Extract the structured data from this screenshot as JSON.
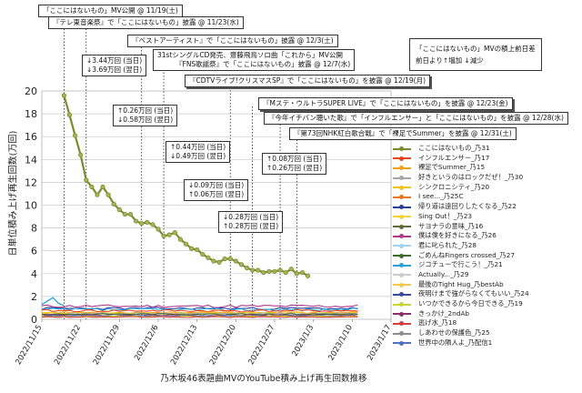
{
  "chart_data": {
    "type": "line",
    "xlabel": "乃木坂46表題曲MVのYouTube積み上げ再生回数推移",
    "ylabel": "日単位積み上げ再生回数(万回)",
    "ylim": [
      0,
      20
    ],
    "y_ticks": [
      "0",
      "2",
      "4",
      "6",
      "8",
      "10",
      "12",
      "14",
      "16",
      "18",
      "20"
    ],
    "x_ticks": [
      "2022/11/15",
      "2022/11/22",
      "2022/11/29",
      "2022/12/6",
      "2022/12/13",
      "2022/12/20",
      "2022/12/27",
      "2023/1/3",
      "2023/1/10",
      "2023/1/17"
    ],
    "grid": "horizontal",
    "legend_position": "right",
    "main_series": {
      "name": "ここにはないもの_乃31",
      "color": "#7a8c2e",
      "x": [
        "2022/11/19",
        "2022/11/20",
        "2022/11/21",
        "2022/11/22",
        "2022/11/23",
        "2022/11/24",
        "2022/11/25",
        "2022/11/26",
        "2022/11/27",
        "2022/11/28",
        "2022/11/29",
        "2022/11/30",
        "2022/12/1",
        "2022/12/2",
        "2022/12/3",
        "2022/12/4",
        "2022/12/5",
        "2022/12/6",
        "2022/12/7",
        "2022/12/8",
        "2022/12/9",
        "2022/12/10",
        "2022/12/11",
        "2022/12/12",
        "2022/12/13",
        "2022/12/14",
        "2022/12/15",
        "2022/12/16",
        "2022/12/17",
        "2022/12/18",
        "2022/12/19",
        "2022/12/20",
        "2022/12/21",
        "2022/12/22",
        "2022/12/23",
        "2022/12/24",
        "2022/12/25",
        "2022/12/26",
        "2022/12/27",
        "2022/12/28",
        "2022/12/29",
        "2022/12/30",
        "2022/12/31",
        "2023/1/1",
        "2023/1/2"
      ],
      "values": [
        19.6,
        17.9,
        16.1,
        14.4,
        12.2,
        11.6,
        10.9,
        11.6,
        10.9,
        10.1,
        9.6,
        9.2,
        9.2,
        8.6,
        8.4,
        8.5,
        8.3,
        7.9,
        7.3,
        7.4,
        7.6,
        7.0,
        6.6,
        6.2,
        6.1,
        5.7,
        5.4,
        5.1,
        5.0,
        5.3,
        5.3,
        5.1,
        4.8,
        4.5,
        4.3,
        4.3,
        4.1,
        4.2,
        4.2,
        4.3,
        4.1,
        4.4,
        4.0,
        4.1,
        3.8
      ]
    },
    "series": [
      {
        "name": "ここにはないもの_乃31",
        "color": "#7a8c2e"
      },
      {
        "name": "インフルエンサー_乃17",
        "color": "#e8451e"
      },
      {
        "name": "裸足でSummer_乃15",
        "color": "#f3a11a"
      },
      {
        "name": "好きというのはロックだぜ！_乃30",
        "color": "#a6a6a6"
      },
      {
        "name": "シンクロニシティ_乃20",
        "color": "#f0c419"
      },
      {
        "name": "I see..._乃25C",
        "color": "#e5762a"
      },
      {
        "name": "帰り道は遠回りしたくなる_乃22",
        "color": "#2a3f9c"
      },
      {
        "name": "Sing Out！_乃23",
        "color": "#f5d33a"
      },
      {
        "name": "サヨナラの意味_乃16",
        "color": "#5e6b3a"
      },
      {
        "name": "僕は僕を好きになる_乃26",
        "color": "#b03a8a"
      },
      {
        "name": "君に叱られた_乃28",
        "color": "#9ed4ee"
      },
      {
        "name": "ごめんねFingers crossed_乃27",
        "color": "#3f6b2a"
      },
      {
        "name": "ジコチューで行こう！_乃21",
        "color": "#26a3d9"
      },
      {
        "name": "Actually..._乃29",
        "color": "#cccccc"
      },
      {
        "name": "最後のTight Hug_乃bestAb",
        "color": "#f2c94c"
      },
      {
        "name": "夜明けまで強がらなくてもいい_乃24",
        "color": "#3a4a9c"
      },
      {
        "name": "いつかできるから今日できる_乃19",
        "color": "#c7d635"
      },
      {
        "name": "きっかけ_2ndAb",
        "color": "#8a2f6b"
      },
      {
        "name": "逃げ水_乃18",
        "color": "#d43f3f"
      },
      {
        "name": "しあわせの保護色_乃25",
        "color": "#8c8c8c"
      },
      {
        "name": "世界中の隣人よ_乃配信1",
        "color": "#4f6fc2"
      }
    ]
  },
  "annotations": {
    "mv": "「ここにはないもの」MV公開 @ 11/19(土)",
    "tele": "『テレ東音楽祭』で「ここにはないもの」披露 @ 11/23(水)",
    "best": "『ベストアーティスト』で「ここにはないもの」披露 @ 12/3(土)",
    "single_1": "31stシングルCD発売、齋藤飛鳥ソロ曲「これから」MV公開",
    "single_2": "『FNS歌謡祭』で「ここにはないもの」披露 @ 12/7(水)",
    "cdtv": "『CDTVライブ!クリスマスSP』で「ここにはないもの」を披露 @ 12/19(月)",
    "msta": "『Mステ・ウルトラSUPER LIVE』で「ここにはないもの」を披露 @ 12/23(金)",
    "kyou": "『今年イチバン聴いた歌』で「インフルエンサー」と「ここにはないもの」を披露 @ 12/28(水)",
    "kohaku": "『第73回NHK紅白歌合戦』で「裸足でSummer」を披露 @ 12/31(土)"
  },
  "diffs": {
    "d1a": "↓3.44万回 (当日)",
    "d1b": "↓3.69万回 (翌日)",
    "d2a": "↑0.26万回 (当日)",
    "d2b": "↓0.58万回 (翌日)",
    "d3a": "↑0.44万回 (当日)",
    "d3b": "↓0.49万回 (翌日)",
    "d4a": "↓0.09万回 (当日)",
    "d4b": "↑0.06万回 (翌日)",
    "d5a": "↓0.28万回 (当日)",
    "d5b": "↑0.28万回 (翌日)",
    "d6a": "↑0.08万回 (当日)",
    "d6b": "↑0.26万回 (翌日)"
  },
  "note": {
    "line1": "「ここにはないもの」MVの積上前日差",
    "line2": "前日より↑増加 ↓減少"
  }
}
